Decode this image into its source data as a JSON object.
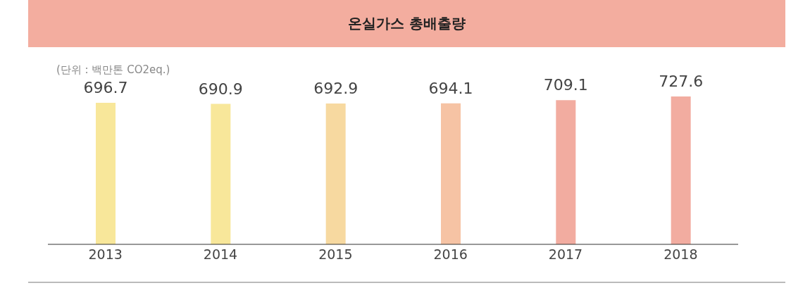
{
  "chart_data": {
    "type": "bar",
    "title": "온실가스 총배출량",
    "subtitle": "(단위 : 백만톤 CO2eq.)",
    "categories": [
      "2013",
      "2014",
      "2015",
      "2016",
      "2017",
      "2018"
    ],
    "values": [
      696.7,
      690.9,
      692.9,
      694.1,
      709.1,
      727.6
    ],
    "colors": [
      "#f8e79a",
      "#f8e79a",
      "#f7d9a0",
      "#f6c3a4",
      "#f2aca0",
      "#f2aca0"
    ],
    "data_labels": true,
    "grid": false,
    "legend": false
  }
}
